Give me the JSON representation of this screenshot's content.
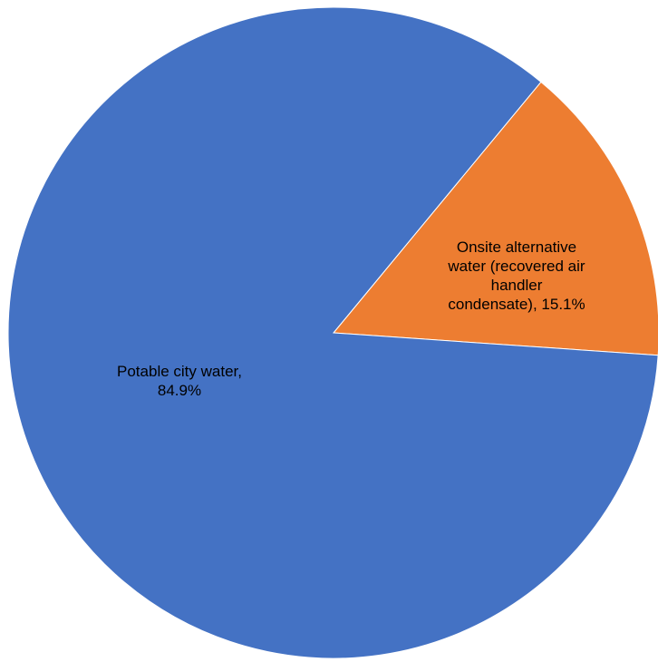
{
  "chart_data": {
    "type": "pie",
    "title": "",
    "start_angle_deg": 39.6,
    "direction": "clockwise",
    "legend": "none",
    "slices": [
      {
        "name": "Onsite alternative water (recovered air handler condensate)",
        "value": 15.1,
        "color": "#ED7D31",
        "label_lines": [
          "Onsite alternative",
          "water (recovered air",
          "handler",
          "condensate), 15.1%"
        ]
      },
      {
        "name": "Potable city water",
        "value": 84.9,
        "color": "#4472C4",
        "label_lines": [
          "Potable city water,",
          "84.9%"
        ]
      }
    ]
  }
}
